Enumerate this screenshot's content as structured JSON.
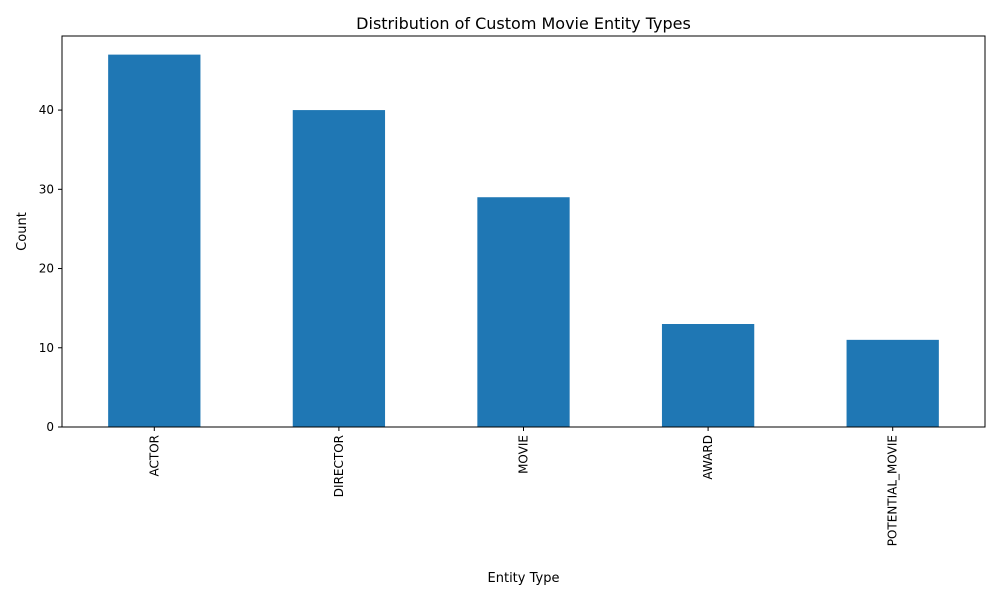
{
  "chart_data": {
    "type": "bar",
    "title": "Distribution of Custom Movie Entity Types",
    "xlabel": "Entity Type",
    "ylabel": "Count",
    "categories": [
      "ACTOR",
      "DIRECTOR",
      "MOVIE",
      "AWARD",
      "POTENTIAL_MOVIE"
    ],
    "values": [
      47,
      40,
      29,
      13,
      11
    ],
    "ylim": [
      0,
      49.35
    ],
    "yticks": [
      0,
      10,
      20,
      30,
      40
    ],
    "bar_color": "#1f77b4",
    "grid": false,
    "legend": false,
    "x_tick_rotation": "vertical"
  }
}
